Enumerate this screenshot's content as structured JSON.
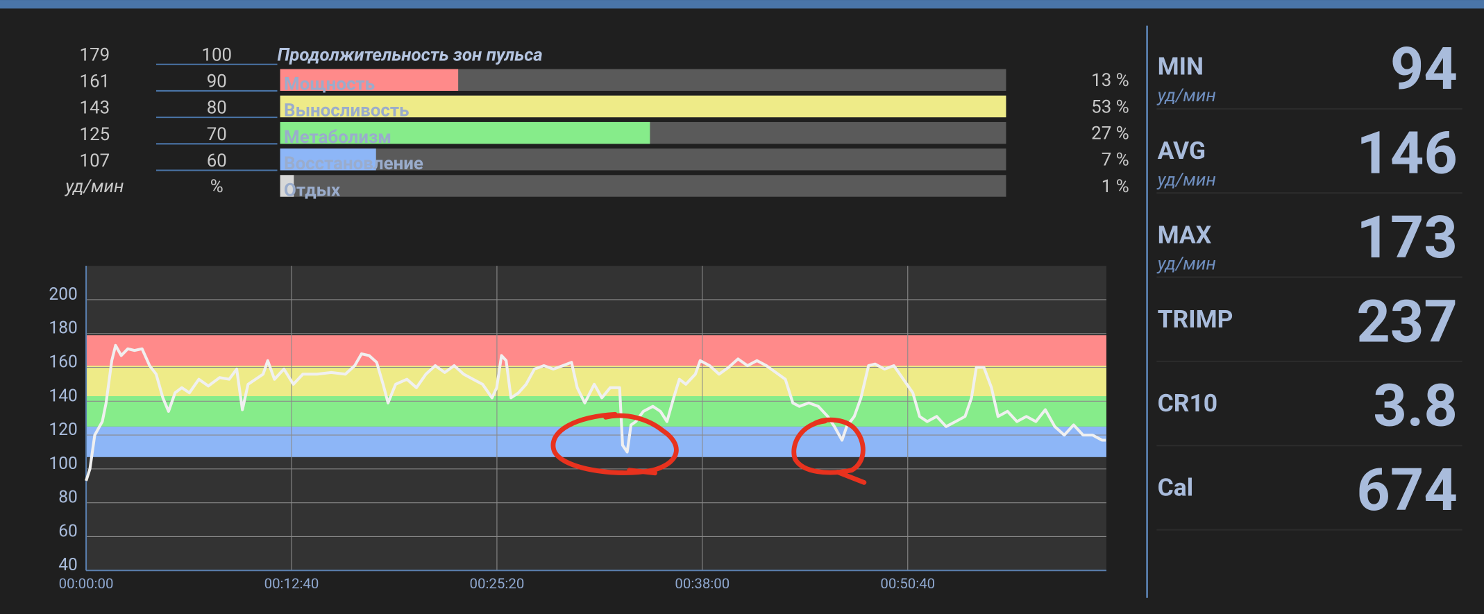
{
  "zones": {
    "title": "Продолжительность зон пульса",
    "bpm": [
      179,
      161,
      143,
      125,
      107
    ],
    "percent": [
      100,
      90,
      80,
      70,
      60
    ],
    "bpm_unit": "уд/мин",
    "percent_unit": "%",
    "names": [
      "Мощность",
      "Выносливость",
      "Метаболизм",
      "Восстановление",
      "Отдых"
    ],
    "shares": [
      13,
      53,
      27,
      7,
      1
    ],
    "share_labels": [
      "13 %",
      "53 %",
      "27 %",
      "7 %",
      "1 %"
    ],
    "colors": [
      "#ff8a8a",
      "#eeeb88",
      "#86ec8a",
      "#8db6f7",
      "#d8d8d8"
    ]
  },
  "stats": [
    {
      "label": "MIN",
      "value": 94,
      "unit": "уд/мин"
    },
    {
      "label": "AVG",
      "value": 146,
      "unit": "уд/мин"
    },
    {
      "label": "MAX",
      "value": 173,
      "unit": "уд/мин"
    },
    {
      "label": "TRIMP",
      "value": 237
    },
    {
      "label": "CR10",
      "value": 3.8
    },
    {
      "label": "Cal",
      "value": 674
    }
  ],
  "chart_data": {
    "type": "line",
    "color": "#f0f0f0",
    "grid": true,
    "x": [
      0,
      14,
      32,
      60,
      74,
      95,
      109,
      130,
      154,
      179,
      207,
      235,
      259,
      284,
      305,
      329,
      354,
      382,
      417,
      452,
      494,
      529,
      557,
      578,
      599,
      627,
      655,
      672,
      697,
      732,
      767,
      802,
      854,
      907,
      959,
      994,
      1019,
      1047,
      1075,
      1099,
      1117,
      1145,
      1187,
      1222,
      1257,
      1292,
      1327,
      1362,
      1397,
      1432,
      1467,
      1502,
      1519,
      1537,
      1554,
      1572,
      1600,
      1628,
      1659,
      1694,
      1729,
      1764,
      1796,
      1817,
      1845,
      1880,
      1908,
      1939,
      1974,
      1985,
      2002,
      2016,
      2034,
      2062,
      2097,
      2125,
      2149,
      2174,
      2195,
      2219,
      2254,
      2272,
      2307,
      2342,
      2377,
      2412,
      2447,
      2482,
      2517,
      2552,
      2587,
      2615,
      2639,
      2674,
      2709,
      2744,
      2769,
      2797,
      2814,
      2842,
      2867,
      2895,
      2919,
      2954,
      2989,
      3024,
      3059,
      3084,
      3112,
      3147,
      3182,
      3217,
      3252,
      3276,
      3294,
      3322,
      3350,
      3374,
      3409,
      3444,
      3479,
      3514,
      3549,
      3584,
      3619,
      3654,
      3689,
      3724,
      3759,
      3773
    ],
    "values": [
      93,
      100,
      120,
      128,
      139,
      164,
      173,
      167,
      171,
      170,
      171,
      161,
      156,
      142,
      134,
      145,
      148,
      145,
      153,
      149,
      154,
      153,
      159,
      135,
      150,
      153,
      156,
      164,
      153,
      159,
      150,
      156,
      156,
      157,
      156,
      161,
      168,
      167,
      163,
      150,
      139,
      150,
      153,
      148,
      156,
      161,
      157,
      161,
      156,
      153,
      150,
      142,
      148,
      167,
      164,
      142,
      145,
      150,
      159,
      161,
      159,
      161,
      163,
      148,
      139,
      150,
      142,
      148,
      148,
      114,
      110,
      126,
      128,
      134,
      137,
      134,
      128,
      142,
      153,
      150,
      156,
      164,
      161,
      156,
      160,
      165,
      161,
      164,
      161,
      157,
      153,
      139,
      137,
      139,
      137,
      131,
      125,
      117,
      125,
      131,
      142,
      161,
      162,
      159,
      161,
      153,
      145,
      131,
      128,
      131,
      125,
      128,
      131,
      142,
      160,
      160,
      148,
      131,
      134,
      128,
      131,
      128,
      135,
      125,
      120,
      126,
      120,
      120,
      117,
      117
    ],
    "xlim": [
      0,
      3775
    ],
    "ylim": [
      40,
      220
    ],
    "xticks": [
      {
        "value": 0,
        "label": "00:00:00"
      },
      {
        "value": 760,
        "label": "00:12:40"
      },
      {
        "value": 1520,
        "label": "00:25:20"
      },
      {
        "value": 2280,
        "label": "00:38:00"
      },
      {
        "value": 3040,
        "label": "00:50:40"
      }
    ],
    "yticks": [
      40,
      60,
      80,
      100,
      120,
      140,
      160,
      180,
      200
    ]
  }
}
